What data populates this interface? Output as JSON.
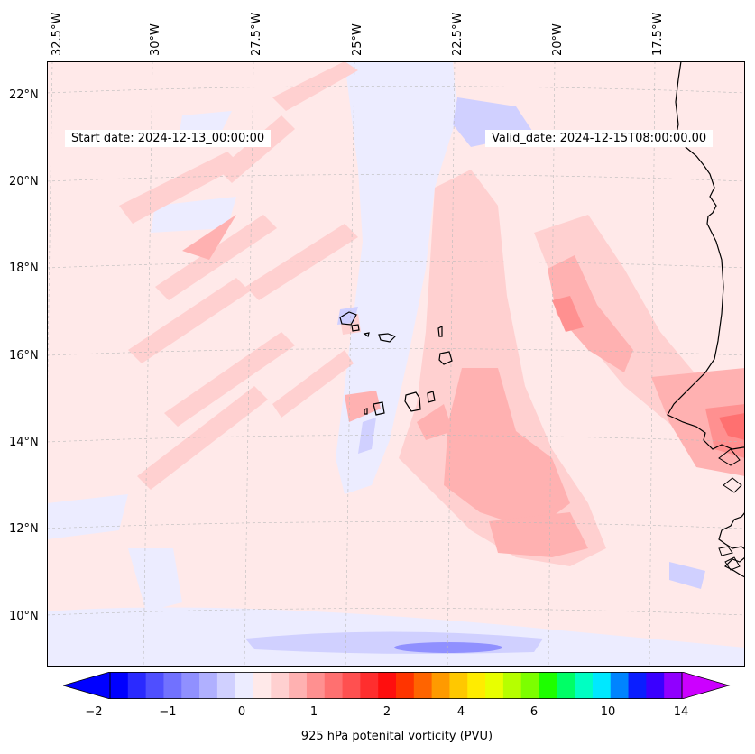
{
  "header": {
    "start_date": "Start date: 2024-12-13_00:00:00",
    "valid_date": "Valid_date: 2024-12-15T08:00:00.00"
  },
  "axes": {
    "longitude_labels": [
      "32.5°W",
      "30°W",
      "27.5°W",
      "25°W",
      "22.5°W",
      "20°W",
      "17.5°W"
    ],
    "latitude_labels": [
      "22°N",
      "20°N",
      "18°N",
      "16°N",
      "14°N",
      "12°N",
      "10°N"
    ]
  },
  "colorbar": {
    "label": "925 hPa potenital vorticity (PVU)",
    "tick_labels": [
      "−2",
      "−1",
      "0",
      "1",
      "2",
      "4",
      "6",
      "10",
      "14"
    ],
    "colors": [
      "#0000ff",
      "#2a2aff",
      "#4f4fff",
      "#7171ff",
      "#9090ff",
      "#b0b0ff",
      "#d0d0ff",
      "#ececff",
      "#ffe9e9",
      "#ffd0d0",
      "#ffb1b1",
      "#ff9090",
      "#ff7070",
      "#ff5050",
      "#ff2e2e",
      "#ff0e0e",
      "#ff3400",
      "#ff6400",
      "#ff9a00",
      "#ffc800",
      "#ffec00",
      "#e8ff00",
      "#b6ff00",
      "#7cff00",
      "#1eff00",
      "#00ff66",
      "#00ffc2",
      "#00e8ff",
      "#0084ff",
      "#0a1eff",
      "#3a00ff",
      "#9000ff"
    ],
    "under_color": "#0000ff",
    "over_color": "#cc00ff"
  },
  "map": {
    "background_color": "#ffe9e9",
    "coastline_color": "#000000",
    "gridline_color": "#bbbbbb"
  }
}
